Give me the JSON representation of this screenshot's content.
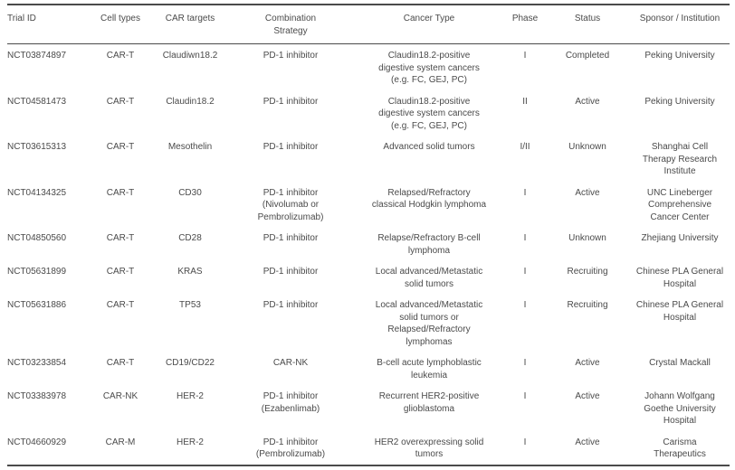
{
  "table": {
    "column_keys": [
      "trial-id",
      "cell-types",
      "car-targets",
      "combination-strategy",
      "cancer-type",
      "phase",
      "status",
      "sponsor-institution"
    ],
    "columns": [
      "Trial ID",
      "Cell types",
      "CAR targets",
      "Combination\nStrategy",
      "Cancer Type",
      "Phase",
      "Status",
      "Sponsor / Institution"
    ],
    "rows": [
      [
        "NCT03874897",
        "CAR-T",
        "Claudiwn18.2",
        "PD-1 inhibitor",
        "Claudin18.2-positive\ndigestive system cancers\n(e.g. FC, GEJ, PC)",
        "I",
        "Completed",
        "Peking University"
      ],
      [
        "NCT04581473",
        "CAR-T",
        "Claudin18.2",
        "PD-1 inhibitor",
        "Claudin18.2-positive\ndigestive system cancers\n(e.g. FC, GEJ, PC)",
        "II",
        "Active",
        "Peking University"
      ],
      [
        "NCT03615313",
        "CAR-T",
        "Mesothelin",
        "PD-1 inhibitor",
        "Advanced solid tumors",
        "I/II",
        "Unknown",
        "Shanghai Cell\nTherapy Research\nInstitute"
      ],
      [
        "NCT04134325",
        "CAR-T",
        "CD30",
        "PD-1 inhibitor\n(Nivolumab or\nPembrolizumab)",
        "Relapsed/Refractory\nclassical Hodgkin lymphoma",
        "I",
        "Active",
        "UNC Lineberger\nComprehensive\nCancer Center"
      ],
      [
        "NCT04850560",
        "CAR-T",
        "CD28",
        "PD-1 inhibitor",
        "Relapse/Refractory B-cell\nlymphoma",
        "I",
        "Unknown",
        "Zhejiang University"
      ],
      [
        "NCT05631899",
        "CAR-T",
        "KRAS",
        "PD-1 inhibitor",
        "Local advanced/Metastatic\nsolid tumors",
        "I",
        "Recruiting",
        "Chinese PLA General\nHospital"
      ],
      [
        "NCT05631886",
        "CAR-T",
        "TP53",
        "PD-1 inhibitor",
        "Local advanced/Metastatic\nsolid tumors or\nRelapsed/Refractory\nlymphomas",
        "I",
        "Recruiting",
        "Chinese PLA General\nHospital"
      ],
      [
        "NCT03233854",
        "CAR-T",
        "CD19/CD22",
        "CAR-NK",
        "B-cell acute lymphoblastic\nleukemia",
        "I",
        "Active",
        "Crystal Mackall"
      ],
      [
        "NCT03383978",
        "CAR-NK",
        "HER-2",
        "PD-1 inhibitor\n(Ezabenlimab)",
        "Recurrent HER2-positive\nglioblastoma",
        "I",
        "Active",
        "Johann Wolfgang\nGoethe University\nHospital"
      ],
      [
        "NCT04660929",
        "CAR-M",
        "HER-2",
        "PD-1 inhibitor\n(Pembrolizumab)",
        "HER2 overexpressing solid\ntumors",
        "I",
        "Active",
        "Carisma\nTherapeutics"
      ]
    ]
  },
  "colors": {
    "text": "#4a4a4a",
    "rule": "#4b4b4b",
    "background": "#ffffff"
  }
}
